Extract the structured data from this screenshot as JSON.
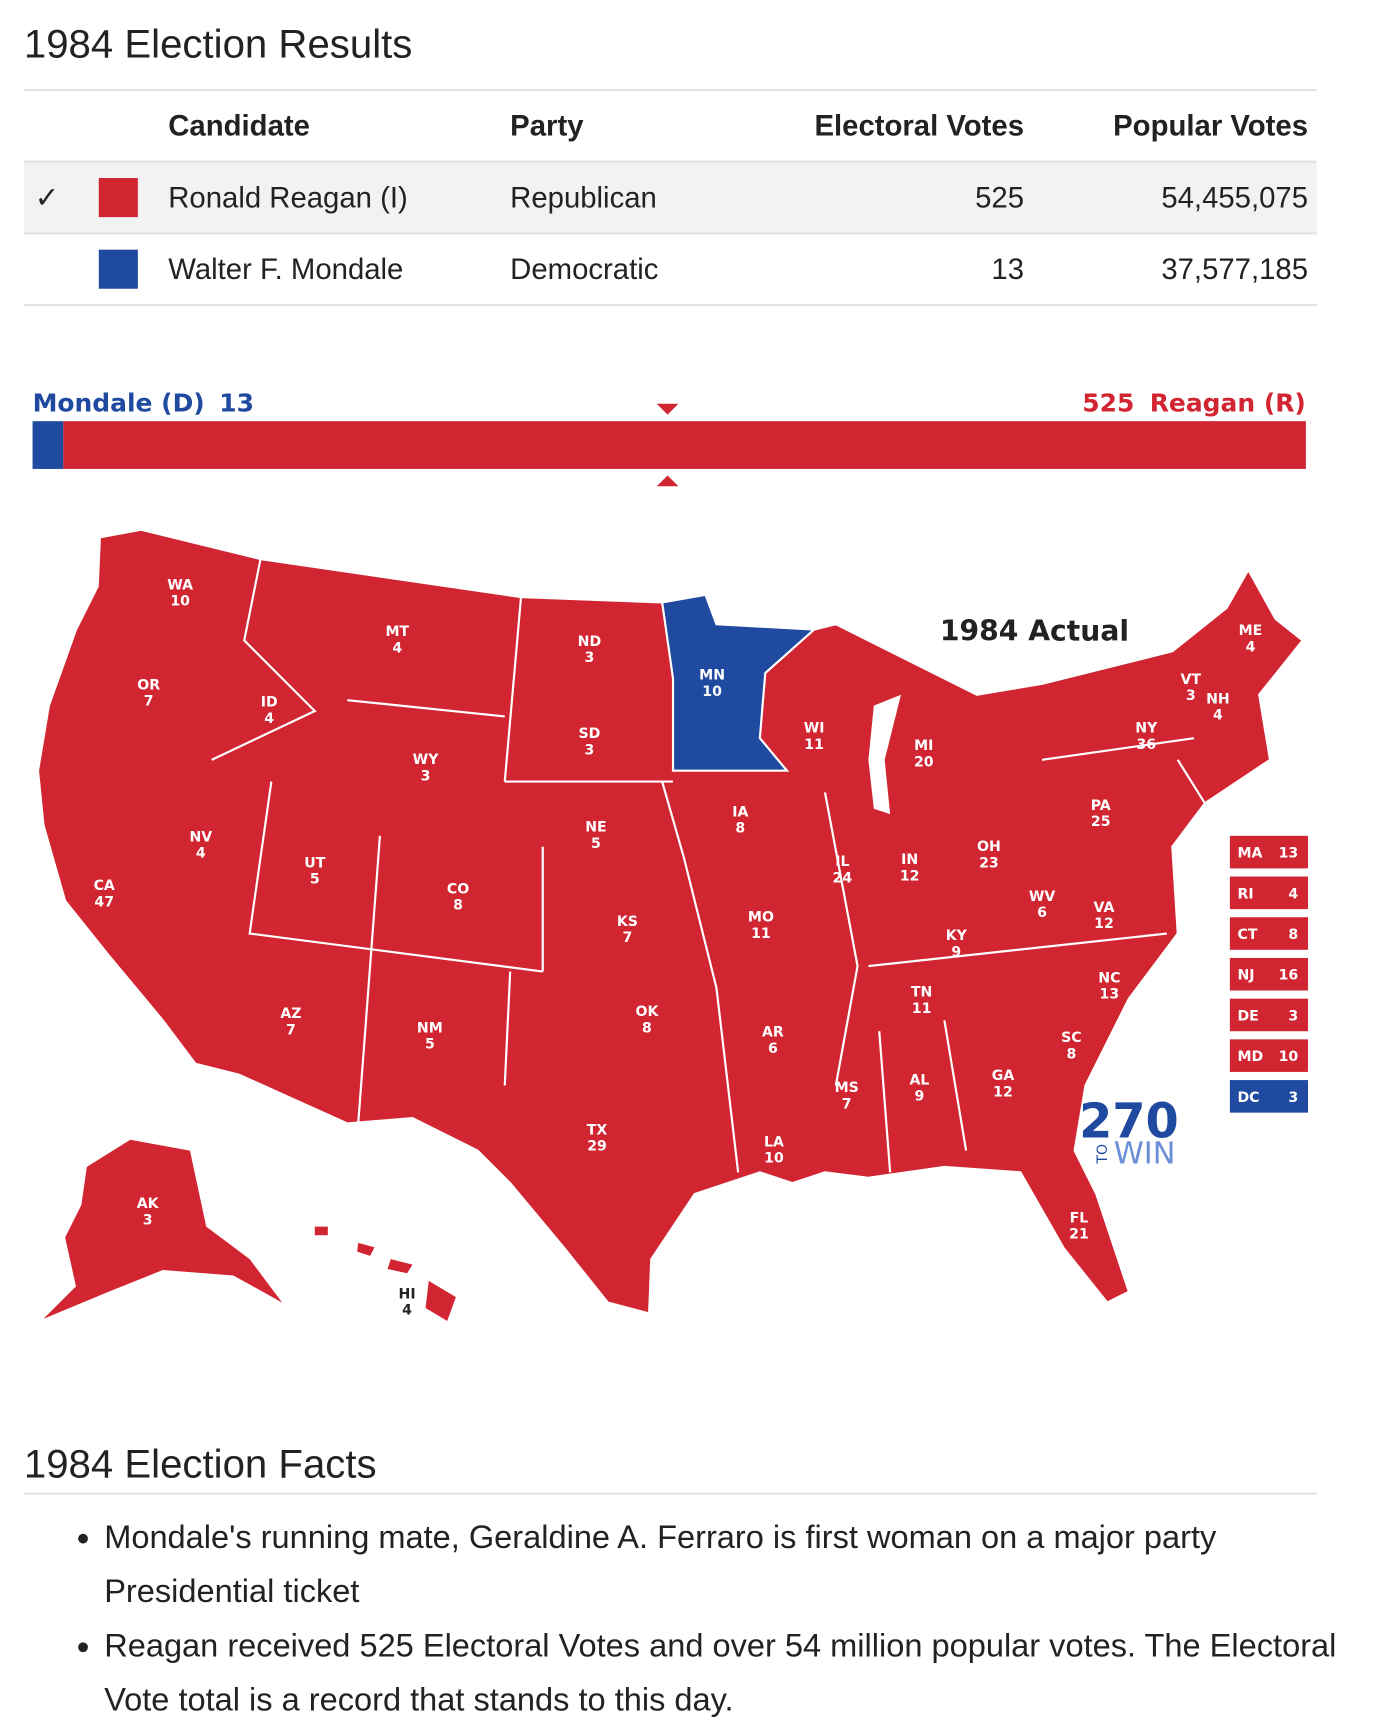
{
  "header": {
    "title": "1984 Election Results"
  },
  "table": {
    "columns": [
      "Candidate",
      "Party",
      "Electoral Votes",
      "Popular Votes"
    ],
    "rows": [
      {
        "winner": "✓",
        "color": "#d22532",
        "candidate": "Ronald Reagan (I)",
        "party": "Republican",
        "electoral_votes": 525,
        "popular_votes": "54,455,075"
      },
      {
        "color": "#1f4aa0",
        "candidate": "Walter F. Mondale",
        "party": "Democratic",
        "electoral_votes": 13,
        "popular_votes": "37,577,185"
      }
    ]
  },
  "bar": {
    "left_label": "Mondale (D)",
    "left_value": 13,
    "right_value": 525,
    "right_label": "Reagan (R)"
  },
  "map": {
    "title": "1984 Actual",
    "colors": {
      "R": "#d22532",
      "D": "#1f4aa0"
    },
    "states": [
      {
        "abbr": "WA",
        "votes": 10,
        "party": "R"
      },
      {
        "abbr": "MT",
        "votes": 4,
        "party": "R"
      },
      {
        "abbr": "ND",
        "votes": 3,
        "party": "R"
      },
      {
        "abbr": "MN",
        "votes": 10,
        "party": "D"
      },
      {
        "abbr": "OR",
        "votes": 7,
        "party": "R"
      },
      {
        "abbr": "ID",
        "votes": 4,
        "party": "R"
      },
      {
        "abbr": "SD",
        "votes": 3,
        "party": "R"
      },
      {
        "abbr": "WI",
        "votes": 11,
        "party": "R"
      },
      {
        "abbr": "MI",
        "votes": 20,
        "party": "R"
      },
      {
        "abbr": "NY",
        "votes": 36,
        "party": "R"
      },
      {
        "abbr": "VT",
        "votes": 3,
        "party": "R"
      },
      {
        "abbr": "NH",
        "votes": 4,
        "party": "R"
      },
      {
        "abbr": "ME",
        "votes": 4,
        "party": "R"
      },
      {
        "abbr": "WY",
        "votes": 3,
        "party": "R"
      },
      {
        "abbr": "NV",
        "votes": 4,
        "party": "R"
      },
      {
        "abbr": "IA",
        "votes": 8,
        "party": "R"
      },
      {
        "abbr": "NE",
        "votes": 5,
        "party": "R"
      },
      {
        "abbr": "PA",
        "votes": 25,
        "party": "R"
      },
      {
        "abbr": "UT",
        "votes": 5,
        "party": "R"
      },
      {
        "abbr": "CA",
        "votes": 47,
        "party": "R"
      },
      {
        "abbr": "CO",
        "votes": 8,
        "party": "R"
      },
      {
        "abbr": "IL",
        "votes": 24,
        "party": "R"
      },
      {
        "abbr": "IN",
        "votes": 12,
        "party": "R"
      },
      {
        "abbr": "OH",
        "votes": 23,
        "party": "R"
      },
      {
        "abbr": "WV",
        "votes": 6,
        "party": "R"
      },
      {
        "abbr": "VA",
        "votes": 12,
        "party": "R"
      },
      {
        "abbr": "KS",
        "votes": 7,
        "party": "R"
      },
      {
        "abbr": "MO",
        "votes": 11,
        "party": "R"
      },
      {
        "abbr": "KY",
        "votes": 9,
        "party": "R"
      },
      {
        "abbr": "TN",
        "votes": 11,
        "party": "R"
      },
      {
        "abbr": "NC",
        "votes": 13,
        "party": "R"
      },
      {
        "abbr": "AZ",
        "votes": 7,
        "party": "R"
      },
      {
        "abbr": "NM",
        "votes": 5,
        "party": "R"
      },
      {
        "abbr": "OK",
        "votes": 8,
        "party": "R"
      },
      {
        "abbr": "AR",
        "votes": 6,
        "party": "R"
      },
      {
        "abbr": "SC",
        "votes": 8,
        "party": "R"
      },
      {
        "abbr": "MS",
        "votes": 7,
        "party": "R"
      },
      {
        "abbr": "AL",
        "votes": 9,
        "party": "R"
      },
      {
        "abbr": "GA",
        "votes": 12,
        "party": "R"
      },
      {
        "abbr": "TX",
        "votes": 29,
        "party": "R"
      },
      {
        "abbr": "LA",
        "votes": 10,
        "party": "R"
      },
      {
        "abbr": "FL",
        "votes": 21,
        "party": "R"
      },
      {
        "abbr": "AK",
        "votes": 3,
        "party": "R"
      },
      {
        "abbr": "HI",
        "votes": 4,
        "party": "R"
      }
    ],
    "small_states": [
      {
        "abbr": "MA",
        "votes": 13,
        "party": "R"
      },
      {
        "abbr": "RI",
        "votes": 4,
        "party": "R"
      },
      {
        "abbr": "CT",
        "votes": 8,
        "party": "R"
      },
      {
        "abbr": "NJ",
        "votes": 16,
        "party": "R"
      },
      {
        "abbr": "DE",
        "votes": 3,
        "party": "R"
      },
      {
        "abbr": "MD",
        "votes": 10,
        "party": "R"
      },
      {
        "abbr": "DC",
        "votes": 3,
        "party": "D"
      }
    ],
    "logo": {
      "number": "270",
      "small": "TO",
      "word": "WIN"
    }
  },
  "facts": {
    "title": "1984 Election Facts",
    "items": [
      "Mondale's running mate, Geraldine A. Ferraro is first woman on a major party Presidential ticket",
      "Reagan received 525 Electoral Votes and over 54 million popular votes. The Electoral Vote total is a record that stands to this day."
    ]
  }
}
